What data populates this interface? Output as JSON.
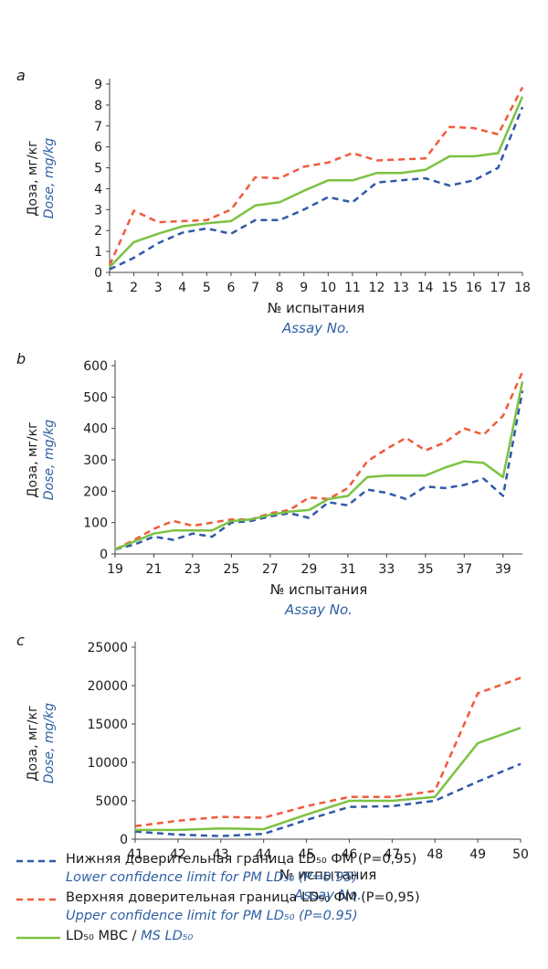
{
  "colors": {
    "lower": "#2f5aa8",
    "upper": "#f05a3c",
    "ms": "#7cc242",
    "axis": "#444444",
    "en_text": "#2e5fa3"
  },
  "axis_text": {
    "y_ru": "Доза, мг/кг",
    "y_en": "Dose, mg/kg",
    "x_ru": "№ испытания",
    "x_en": "Assay No."
  },
  "legend": {
    "lower_ru": "Нижняя доверительная граница LD₅₀ ФМ (P=0,95)",
    "lower_en": "Lower confidence limit for PM LD₅₀ (P=0.95)",
    "upper_ru": "Верхняя доверительная граница LD₅₀ ФМ (P=0,95)",
    "upper_en": "Upper confidence limit for PM LD₅₀ (P=0.95)",
    "ms_ru": "LD₅₀ МВС /",
    "ms_en": "MS LD₅₀"
  },
  "chart_data": [
    {
      "type": "line",
      "panel": "a",
      "x": [
        1,
        2,
        3,
        4,
        5,
        6,
        7,
        8,
        9,
        10,
        11,
        12,
        13,
        14,
        15,
        16,
        17,
        18
      ],
      "xticks": [
        "1",
        "2",
        "3",
        "4",
        "5",
        "6",
        "7",
        "8",
        "9",
        "10",
        "11",
        "12",
        "13",
        "14",
        "15",
        "16",
        "17",
        "18"
      ],
      "ylim": [
        0,
        9
      ],
      "yticks": [
        0,
        1,
        2,
        3,
        4,
        5,
        6,
        7,
        8,
        9
      ],
      "series": [
        {
          "key": "lower",
          "values": [
            0.15,
            0.7,
            1.4,
            1.9,
            2.1,
            1.85,
            2.5,
            2.5,
            3.0,
            3.6,
            3.35,
            4.3,
            4.4,
            4.5,
            4.15,
            4.4,
            5.0,
            7.9
          ]
        },
        {
          "key": "upper",
          "values": [
            0.35,
            2.95,
            2.4,
            2.45,
            2.5,
            3.0,
            4.55,
            4.5,
            5.05,
            5.25,
            5.7,
            5.35,
            5.4,
            5.45,
            6.95,
            6.9,
            6.6,
            8.85
          ]
        },
        {
          "key": "ms",
          "values": [
            0.25,
            1.45,
            1.85,
            2.2,
            2.35,
            2.45,
            3.2,
            3.35,
            3.9,
            4.4,
            4.4,
            4.75,
            4.75,
            4.9,
            5.55,
            5.55,
            5.7,
            8.4
          ]
        }
      ]
    },
    {
      "type": "line",
      "panel": "b",
      "x": [
        19,
        20,
        21,
        22,
        23,
        24,
        25,
        26,
        27,
        28,
        29,
        30,
        31,
        32,
        33,
        34,
        35,
        36,
        37,
        38,
        39,
        40
      ],
      "xticks": [
        "19",
        "21",
        "23",
        "25",
        "27",
        "29",
        "31",
        "33",
        "35",
        "37",
        "39"
      ],
      "ylim": [
        0,
        600
      ],
      "yticks": [
        0,
        100,
        200,
        300,
        400,
        500,
        600
      ],
      "series": [
        {
          "key": "lower",
          "values": [
            15,
            30,
            55,
            45,
            65,
            55,
            100,
            105,
            120,
            130,
            115,
            165,
            155,
            205,
            195,
            175,
            215,
            210,
            220,
            240,
            185,
            520
          ]
        },
        {
          "key": "upper",
          "values": [
            15,
            45,
            80,
            105,
            90,
            100,
            110,
            110,
            130,
            140,
            180,
            175,
            210,
            295,
            335,
            370,
            330,
            355,
            400,
            380,
            440,
            580
          ]
        },
        {
          "key": "ms",
          "values": [
            15,
            40,
            65,
            75,
            75,
            75,
            105,
            110,
            125,
            135,
            140,
            175,
            185,
            245,
            250,
            250,
            250,
            275,
            295,
            290,
            245,
            550
          ]
        }
      ]
    },
    {
      "type": "line",
      "panel": "c",
      "x": [
        41,
        42,
        43,
        44,
        45,
        46,
        47,
        48,
        49,
        50
      ],
      "xticks": [
        "41",
        "42",
        "43",
        "44",
        "45",
        "46",
        "47",
        "48",
        "49",
        "50"
      ],
      "ylim": [
        0,
        25000
      ],
      "yticks": [
        0,
        5000,
        10000,
        15000,
        20000,
        25000
      ],
      "series": [
        {
          "key": "lower",
          "values": [
            1000,
            600,
            400,
            700,
            2500,
            4200,
            4300,
            5000,
            7500,
            9800
          ]
        },
        {
          "key": "upper",
          "values": [
            1700,
            2400,
            2900,
            2800,
            4300,
            5500,
            5500,
            6300,
            19000,
            21000
          ]
        },
        {
          "key": "ms",
          "values": [
            1200,
            1200,
            1400,
            1300,
            3200,
            5000,
            5000,
            5500,
            12500,
            14500
          ]
        }
      ]
    }
  ]
}
